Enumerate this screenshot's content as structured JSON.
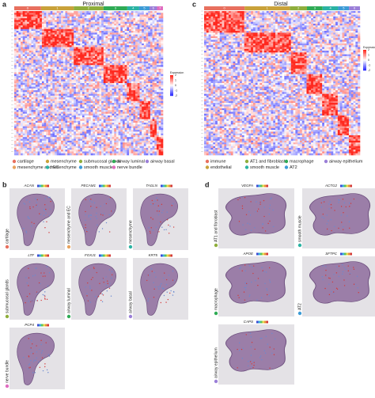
{
  "panels": {
    "a": {
      "label": "a",
      "title": "Proximal",
      "clusters": [
        "0",
        "1",
        "2",
        "3",
        "4",
        "5",
        "6",
        "7"
      ],
      "legend_title": "Expression",
      "legend_ticks": [
        2,
        1,
        0,
        -1,
        -2
      ],
      "legend": [
        "cartilage",
        "mesenchyme",
        "submucosal glands",
        "airway luminal",
        "airway basal",
        "mesenchyme and EC",
        "mesenchyme",
        "smooth muscle",
        "nerve bundle"
      ]
    },
    "b": {
      "label": "b",
      "items": [
        {
          "gene": "ACAN",
          "label": "cartilage"
        },
        {
          "gene": "PECAM1",
          "label": "mesenchyme and EC"
        },
        {
          "gene": "TAGLN",
          "label": "mesenchyme"
        },
        {
          "gene": "LTF",
          "label": "submucosal glands"
        },
        {
          "gene": "FOXJ1",
          "label": "airway luminal"
        },
        {
          "gene": "KRT5",
          "label": "airway basal"
        },
        {
          "gene": "PCP4",
          "label": "nerve bundle"
        }
      ]
    },
    "c": {
      "label": "c",
      "title": "Distal",
      "clusters": [
        "0",
        "1",
        "2",
        "3",
        "4",
        "5",
        "6"
      ],
      "legend_title": "Expression",
      "legend_ticks": [
        2,
        1,
        0,
        -1,
        -2
      ],
      "legend": [
        "immune",
        "AT1 and fibroblast",
        "macrophage",
        "airway epithelium",
        "endothelial",
        "smooth muscle",
        "AT2"
      ]
    },
    "d": {
      "label": "d",
      "items": [
        {
          "gene": "VEGFA",
          "label": "AT1 and fibroblast"
        },
        {
          "gene": "ACTG2",
          "label": "smooth muscle"
        },
        {
          "gene": "APOE",
          "label": "macrophage"
        },
        {
          "gene": "SFTPC",
          "label": "AT2"
        },
        {
          "gene": "CAPS",
          "label": "airway epithelium"
        }
      ]
    }
  }
}
